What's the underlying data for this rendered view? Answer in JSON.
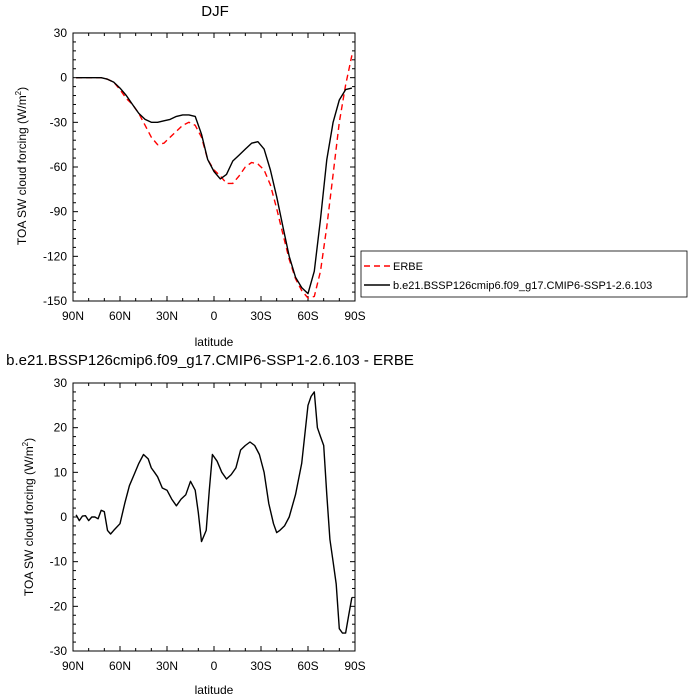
{
  "chart_data": [
    {
      "type": "line",
      "title": "DJF",
      "xlabel": "latitude",
      "ylabel": "TOA SW cloud forcing (W/m",
      "ylabel_superscript": "2",
      "ylabel_suffix": ")",
      "xlim": [
        90,
        -90
      ],
      "ylim": [
        -150,
        30
      ],
      "xticks": [
        90,
        60,
        30,
        0,
        -30,
        -60,
        -90
      ],
      "xticklabels": [
        "90N",
        "60N",
        "30N",
        "0",
        "30S",
        "60S",
        "90S"
      ],
      "yticks": [
        30,
        0,
        -30,
        -60,
        -90,
        -120,
        -150
      ],
      "yticklabels": [
        "30",
        "0",
        "-30",
        "-60",
        "-90",
        "-120",
        "-150"
      ],
      "grid": false,
      "legend_position": "right",
      "series": [
        {
          "name": "ERBE",
          "color": "#ff0000",
          "dash": "dashed",
          "x": [
            88,
            84,
            80,
            76,
            72,
            68,
            64,
            60,
            56,
            52,
            48,
            44,
            40,
            36,
            32,
            28,
            24,
            20,
            16,
            12,
            8,
            4,
            0,
            -4,
            -8,
            -12,
            -16,
            -20,
            -24,
            -28,
            -32,
            -36,
            -40,
            -44,
            -48,
            -52,
            -56,
            -60,
            -64,
            -68,
            -72,
            -76,
            -80,
            -84,
            -88
          ],
          "y": [
            0,
            0,
            0,
            0,
            0,
            -1,
            -3,
            -8,
            -14,
            -18,
            -24,
            -32,
            -40,
            -45,
            -44,
            -40,
            -36,
            -32,
            -30,
            -32,
            -40,
            -55,
            -62,
            -66,
            -71,
            -71,
            -66,
            -60,
            -57,
            -58,
            -62,
            -72,
            -88,
            -105,
            -122,
            -135,
            -143,
            -148,
            -147,
            -130,
            -100,
            -65,
            -30,
            -5,
            15
          ]
        },
        {
          "name": "b.e21.BSSP126cmip6.f09_g17.CMIP6-SSP1-2.6.103",
          "color": "#000000",
          "dash": "solid",
          "x": [
            88,
            84,
            80,
            76,
            72,
            68,
            64,
            60,
            56,
            52,
            48,
            44,
            40,
            36,
            32,
            28,
            24,
            20,
            16,
            12,
            8,
            4,
            0,
            -4,
            -8,
            -12,
            -16,
            -20,
            -24,
            -28,
            -32,
            -36,
            -40,
            -44,
            -48,
            -52,
            -56,
            -60,
            -64,
            -68,
            -72,
            -76,
            -80,
            -84,
            -88
          ],
          "y": [
            0,
            0,
            0,
            0,
            0,
            -1,
            -3,
            -7,
            -12,
            -18,
            -24,
            -28,
            -30,
            -30,
            -29,
            -28,
            -26,
            -25,
            -25,
            -26,
            -38,
            -55,
            -63,
            -68,
            -65,
            -56,
            -52,
            -48,
            -44,
            -43,
            -48,
            -62,
            -80,
            -100,
            -120,
            -134,
            -141,
            -145,
            -130,
            -95,
            -55,
            -30,
            -15,
            -8,
            -7
          ]
        }
      ]
    },
    {
      "type": "line",
      "title": "b.e21.BSSP126cmip6.f09_g17.CMIP6-SSP1-2.6.103 - ERBE",
      "xlabel": "latitude",
      "ylabel": "TOA SW cloud forcing (W/m",
      "ylabel_superscript": "2",
      "ylabel_suffix": ")",
      "xlim": [
        90,
        -90
      ],
      "ylim": [
        -30,
        30
      ],
      "xticks": [
        90,
        60,
        30,
        0,
        -30,
        -60,
        -90
      ],
      "xticklabels": [
        "90N",
        "60N",
        "30N",
        "0",
        "30S",
        "60S",
        "90S"
      ],
      "yticks": [
        30,
        20,
        10,
        0,
        -10,
        -20,
        -30
      ],
      "yticklabels": [
        "30",
        "20",
        "10",
        "0",
        "-10",
        "-20",
        "-30"
      ],
      "grid": false,
      "series": [
        {
          "color": "#000000",
          "dash": "solid",
          "x": [
            88,
            86,
            84,
            82,
            80,
            78,
            76,
            74,
            72,
            70,
            68,
            66,
            64,
            60,
            57,
            54,
            51,
            48,
            45,
            42,
            40,
            38,
            36,
            33,
            30,
            27,
            24,
            21,
            18,
            15,
            12,
            10,
            8,
            5,
            3,
            1,
            -2,
            -5,
            -8,
            -11,
            -14,
            -17,
            -20,
            -23,
            -26,
            -29,
            -32,
            -35,
            -38,
            -40,
            -42,
            -45,
            -48,
            -52,
            -56,
            -60,
            -62,
            -64,
            -66,
            -68,
            -70,
            -72,
            -74,
            -76,
            -78,
            -80,
            -82,
            -84,
            -86,
            -88
          ],
          "y": [
            0.5,
            -0.8,
            0.2,
            0.3,
            -0.8,
            0,
            0,
            -0.4,
            1.5,
            1.2,
            -3,
            -3.8,
            -3,
            -1.5,
            3,
            7,
            9.5,
            12,
            14,
            13,
            11,
            10,
            9,
            6.5,
            6,
            4,
            2.5,
            4,
            5,
            8,
            6,
            1,
            -5.5,
            -3,
            6,
            14,
            12.5,
            10,
            8.5,
            9.5,
            11,
            15,
            16,
            16.8,
            16,
            14,
            10,
            3,
            -1.5,
            -3.5,
            -3,
            -2,
            0,
            5,
            12,
            25,
            27,
            28,
            20,
            18,
            16,
            5,
            -5,
            -10,
            -15,
            -25,
            -26,
            -26,
            -22,
            -18
          ]
        }
      ]
    }
  ]
}
